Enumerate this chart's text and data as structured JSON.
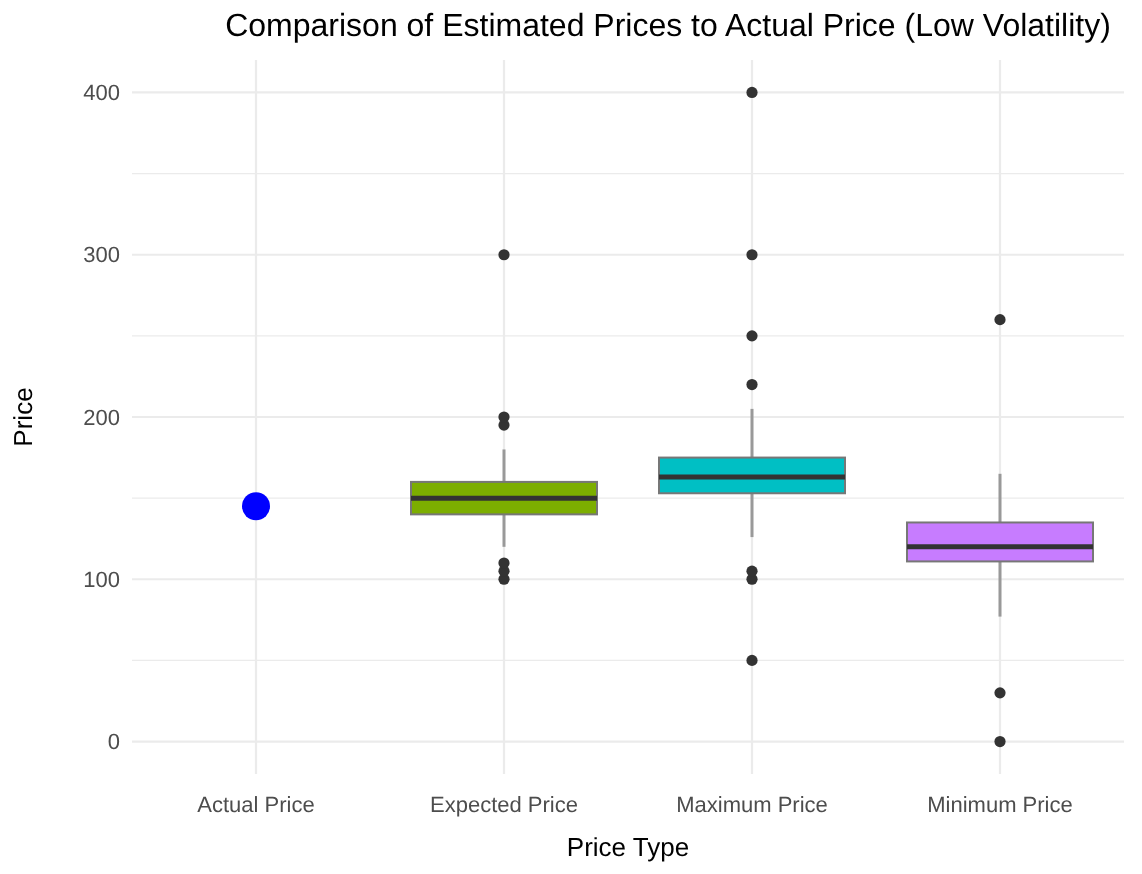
{
  "chart_data": {
    "type": "box",
    "title": "Comparison of Estimated Prices to Actual Price (Low Volatility)",
    "xlabel": "Price Type",
    "ylabel": "Price",
    "categories": [
      "Actual Price",
      "Expected Price",
      "Maximum Price",
      "Minimum Price"
    ],
    "ylim": [
      -20,
      420
    ],
    "yticks": [
      0,
      {
        "value": 50,
        "label": null
      },
      100,
      {
        "value": 150,
        "label": null
      },
      200,
      {
        "value": 250,
        "label": null
      },
      300,
      {
        "value": 350,
        "label": null
      },
      400
    ],
    "grid": true,
    "series": [
      {
        "colors": [
          null,
          "#7cae00",
          "#00bfc4",
          "#c77cff"
        ],
        "boxes": [
          null,
          {
            "low": 120,
            "q1": 140,
            "median": 150,
            "q3": 160,
            "high": 180,
            "outliers": [
              100,
              105,
              110,
              195,
              200,
              300
            ]
          },
          {
            "low": 126,
            "q1": 153,
            "median": 163,
            "q3": 175,
            "high": 205,
            "outliers": [
              50,
              100,
              105,
              220,
              250,
              300,
              400
            ]
          },
          {
            "low": 77,
            "q1": 111,
            "median": 120,
            "q3": 135,
            "high": 165,
            "outliers": [
              0,
              30,
              260
            ]
          }
        ]
      },
      {
        "type": "scatter",
        "x": [
          "Actual Price"
        ],
        "values": [
          145
        ],
        "color": "#0000ff",
        "marker": "circle"
      }
    ]
  }
}
